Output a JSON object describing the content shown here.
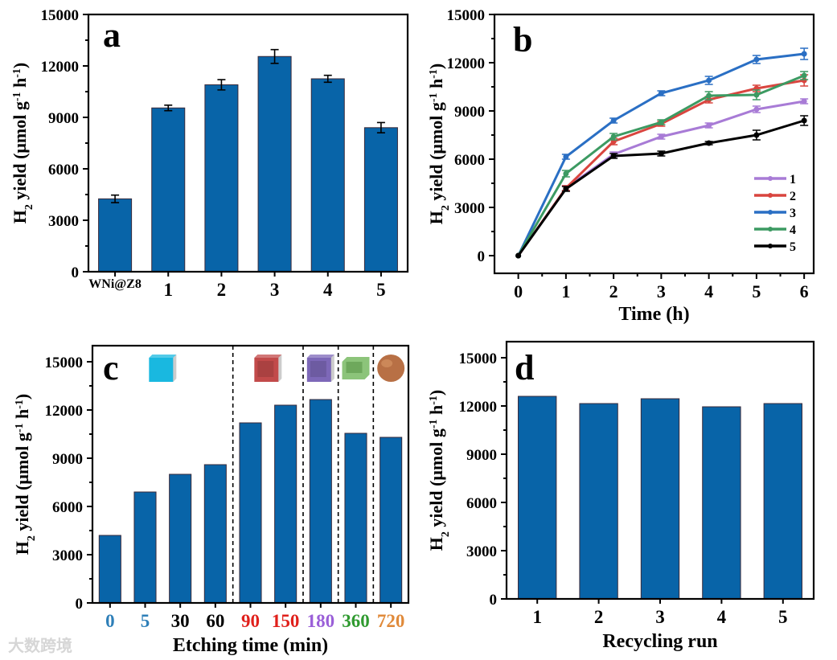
{
  "ylabel_parts": [
    "H",
    "2",
    " yield (μmol g",
    "-1",
    " h",
    "-1",
    ")"
  ],
  "watermark": "大数跨境",
  "colors": {
    "bar": "#0864a8",
    "bar_edge": "#3a2a3a"
  },
  "chart_data": [
    {
      "panel": "a",
      "type": "bar",
      "categories": [
        "WNi@Z8",
        "1",
        "2",
        "3",
        "4",
        "5"
      ],
      "values": [
        4250,
        9550,
        10900,
        12550,
        11250,
        8400
      ],
      "errors": [
        220,
        160,
        300,
        400,
        200,
        300
      ],
      "xlabel": "",
      "ylabel": "H2 yield (μmol g-1 h-1)",
      "ylim": [
        0,
        15000
      ],
      "yticks": [
        "0",
        "3000",
        "6000",
        "9000",
        "12000",
        "15000"
      ]
    },
    {
      "panel": "b",
      "type": "line",
      "x": [
        0,
        1,
        2,
        3,
        4,
        5,
        6
      ],
      "xticks": [
        "0",
        "1",
        "2",
        "3",
        "4",
        "5",
        "6"
      ],
      "series": [
        {
          "name": "1",
          "color": "#a87bd6",
          "values": [
            0,
            4200,
            6300,
            7400,
            8100,
            9100,
            9600
          ],
          "errors": [
            0,
            150,
            150,
            150,
            150,
            200,
            150
          ]
        },
        {
          "name": "2",
          "color": "#d9453f",
          "values": [
            0,
            4200,
            7100,
            8200,
            9700,
            10400,
            10900
          ],
          "errors": [
            0,
            150,
            200,
            150,
            200,
            200,
            350
          ]
        },
        {
          "name": "3",
          "color": "#2a6fc4",
          "values": [
            0,
            6150,
            8400,
            10100,
            10900,
            12200,
            12550
          ],
          "errors": [
            0,
            150,
            150,
            150,
            250,
            250,
            350
          ]
        },
        {
          "name": "4",
          "color": "#3c9a62",
          "values": [
            0,
            5100,
            7400,
            8300,
            9950,
            10000,
            11200
          ],
          "errors": [
            0,
            200,
            200,
            150,
            250,
            300,
            250
          ]
        },
        {
          "name": "5",
          "color": "#000000",
          "values": [
            0,
            4150,
            6200,
            6350,
            7000,
            7500,
            8400
          ],
          "errors": [
            0,
            150,
            150,
            150,
            100,
            300,
            300
          ]
        }
      ],
      "xlabel": "Time (h)",
      "ylabel": "H2 yield (μmol g-1 h-1)",
      "xlim": [
        -0.5,
        6.2
      ],
      "ylim": [
        -1100,
        15000
      ],
      "yticks": [
        "0",
        "3000",
        "6000",
        "9000",
        "12000",
        "15000"
      ],
      "legend": "center-right"
    },
    {
      "panel": "c",
      "type": "bar",
      "categories": [
        "0",
        "5",
        "30",
        "60",
        "90",
        "150",
        "180",
        "360",
        "720"
      ],
      "category_colors": [
        "#2e7fb8",
        "#2e7fb8",
        "#000000",
        "#000000",
        "#e0201b",
        "#e0201b",
        "#9a5fd8",
        "#2f9a2f",
        "#e08a3a"
      ],
      "values": [
        4200,
        6900,
        8000,
        8600,
        11200,
        12300,
        12650,
        10550,
        10300
      ],
      "xlabel": "Etching time (min)",
      "ylabel": "H2 yield (μmol g-1 h-1)",
      "ylim": [
        0,
        16000
      ],
      "yticks": [
        "0",
        "3000",
        "6000",
        "9000",
        "12000",
        "15000"
      ],
      "group_dividers_after": [
        3,
        5,
        6,
        7
      ],
      "morphology_icons": [
        {
          "name": "solid-cube",
          "color": "#19b8e0",
          "above": 1.5
        },
        {
          "name": "partly-hollow-cube",
          "color": "#c24a4a",
          "above": 4.5
        },
        {
          "name": "hollow-cube",
          "color": "#7d68b8",
          "above": 6
        },
        {
          "name": "open-box",
          "color": "#8cc47a",
          "above": 7
        },
        {
          "name": "sphere",
          "color": "#b87045",
          "above": 8
        }
      ]
    },
    {
      "panel": "d",
      "type": "bar",
      "categories": [
        "1",
        "2",
        "3",
        "4",
        "5"
      ],
      "values": [
        12600,
        12150,
        12450,
        11950,
        12150
      ],
      "xlabel": "Recycling run",
      "ylabel": "H2 yield (μmol g-1 h-1)",
      "ylim": [
        0,
        16000
      ],
      "yticks": [
        "0",
        "3000",
        "6000",
        "9000",
        "12000",
        "15000"
      ]
    }
  ]
}
